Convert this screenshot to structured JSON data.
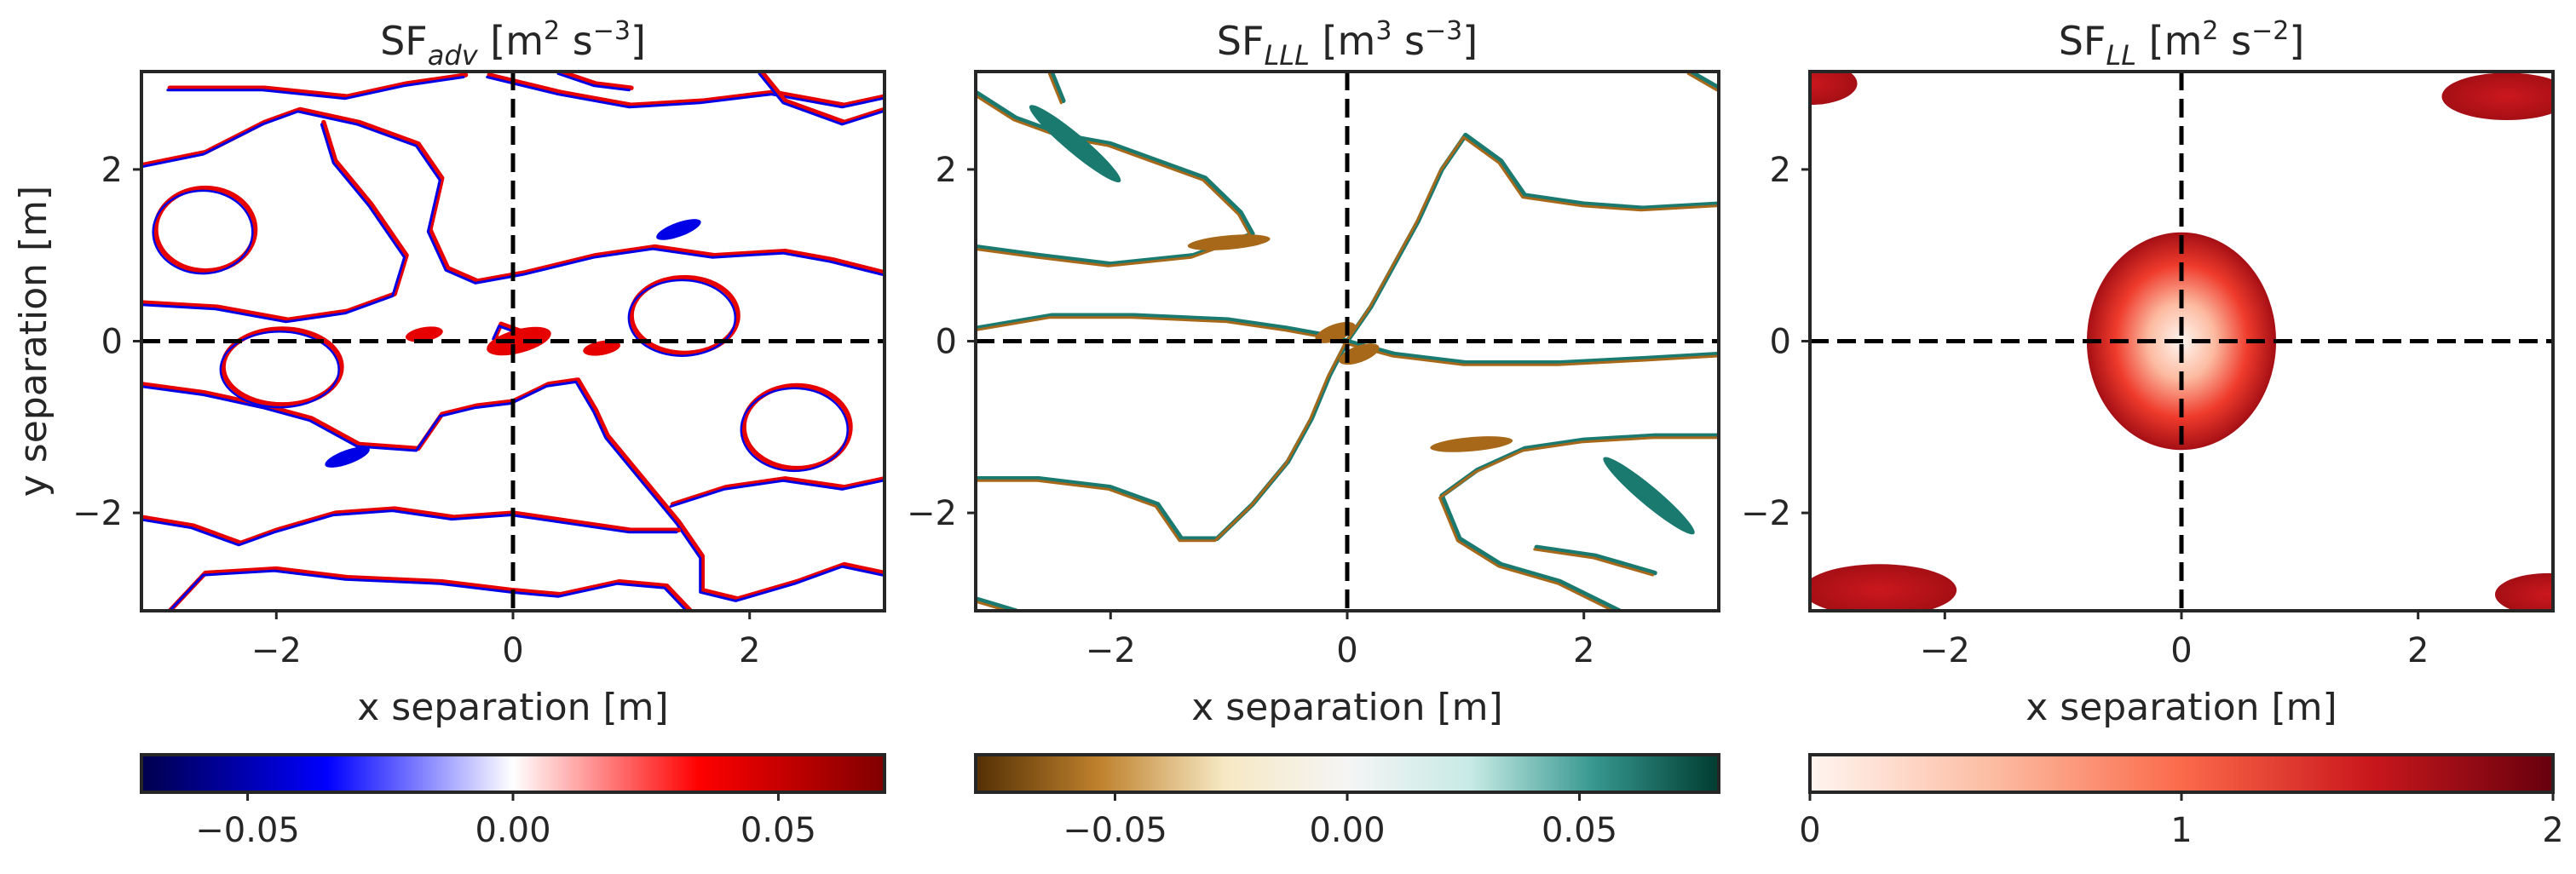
{
  "chart_data": [
    {
      "type": "heatmap",
      "title": {
        "base": "SF",
        "sub": "adv",
        "unit_pre": " [m",
        "unit_sup": "2",
        "unit_mid": " s",
        "unit_sup2": "−3",
        "unit_post": "]"
      },
      "xlabel": "x separation [m]",
      "ylabel": "y separation [m]",
      "xlim": [
        -3.14,
        3.14
      ],
      "ylim": [
        -3.14,
        3.14
      ],
      "xticks": [
        {
          "v": -2,
          "label": "−2"
        },
        {
          "v": 0,
          "label": "0"
        },
        {
          "v": 2,
          "label": "2"
        }
      ],
      "yticks": [
        {
          "v": 2,
          "label": "2"
        },
        {
          "v": 0,
          "label": "0"
        },
        {
          "v": -2,
          "label": "−2"
        }
      ],
      "show_yticks": true,
      "cross_lines": {
        "x": 0,
        "y": 0,
        "style": "dashed"
      },
      "colorbar": {
        "colormap": "seismic",
        "range": [
          -0.07,
          0.07
        ],
        "ticks": [
          {
            "v": -0.05,
            "label": "−0.05"
          },
          {
            "v": 0.0,
            "label": "0.00"
          },
          {
            "v": 0.05,
            "label": "0.05"
          }
        ],
        "stops": [
          "#00004c",
          "#0000ff",
          "#ffffff",
          "#ff0000",
          "#800000"
        ]
      },
      "colors": {
        "neg": "#0000e6",
        "pos": "#e60000"
      },
      "contours": [
        [
          [
            -3.14,
            2.05
          ],
          [
            -2.6,
            2.2
          ],
          [
            -2.1,
            2.55
          ],
          [
            -1.8,
            2.7
          ],
          [
            -1.3,
            2.55
          ],
          [
            -0.8,
            2.3
          ],
          [
            -0.6,
            1.9
          ],
          [
            -0.7,
            1.3
          ],
          [
            -0.55,
            0.85
          ],
          [
            -0.3,
            0.7
          ],
          [
            0.1,
            0.8
          ],
          [
            0.7,
            1.0
          ],
          [
            1.2,
            1.1
          ],
          [
            1.7,
            1.0
          ],
          [
            2.3,
            1.05
          ],
          [
            2.7,
            0.95
          ],
          [
            3.14,
            0.8
          ]
        ],
        [
          [
            -3.14,
            0.45
          ],
          [
            -2.5,
            0.4
          ],
          [
            -1.9,
            0.25
          ],
          [
            -1.4,
            0.35
          ],
          [
            -1.0,
            0.55
          ],
          [
            -0.9,
            1.0
          ],
          [
            -1.2,
            1.6
          ],
          [
            -1.5,
            2.1
          ],
          [
            -1.6,
            2.55
          ]
        ],
        [
          [
            -2.9,
            2.95
          ],
          [
            -2.1,
            2.95
          ],
          [
            -1.4,
            2.85
          ],
          [
            -0.9,
            3.0
          ],
          [
            -0.4,
            3.1
          ]
        ],
        [
          [
            -0.2,
            3.1
          ],
          [
            0.4,
            2.9
          ],
          [
            1.0,
            2.75
          ],
          [
            1.6,
            2.8
          ],
          [
            2.2,
            2.9
          ],
          [
            2.8,
            2.75
          ],
          [
            3.14,
            2.85
          ]
        ],
        [
          [
            0.4,
            3.14
          ],
          [
            0.7,
            3.0
          ],
          [
            1.0,
            2.95
          ]
        ],
        [
          [
            2.1,
            3.14
          ],
          [
            2.3,
            2.8
          ],
          [
            2.8,
            2.55
          ],
          [
            3.14,
            2.7
          ]
        ],
        [
          [
            -3.14,
            -0.5
          ],
          [
            -2.6,
            -0.6
          ],
          [
            -2.1,
            -0.75
          ],
          [
            -1.7,
            -0.9
          ],
          [
            -1.3,
            -1.2
          ],
          [
            -0.8,
            -1.25
          ],
          [
            -0.6,
            -0.85
          ],
          [
            -0.3,
            -0.75
          ],
          [
            0.0,
            -0.7
          ],
          [
            0.3,
            -0.5
          ],
          [
            0.55,
            -0.45
          ],
          [
            0.7,
            -0.8
          ],
          [
            0.8,
            -1.1
          ],
          [
            1.1,
            -1.6
          ],
          [
            1.4,
            -2.1
          ],
          [
            1.6,
            -2.5
          ],
          [
            1.6,
            -2.9
          ],
          [
            1.9,
            -3.0
          ],
          [
            2.4,
            -2.8
          ],
          [
            2.8,
            -2.6
          ],
          [
            3.14,
            -2.7
          ]
        ],
        [
          [
            -3.14,
            -2.05
          ],
          [
            -2.7,
            -2.15
          ],
          [
            -2.3,
            -2.35
          ],
          [
            -2.0,
            -2.2
          ],
          [
            -1.5,
            -2.0
          ],
          [
            -1.0,
            -1.95
          ],
          [
            -0.5,
            -2.05
          ],
          [
            0.0,
            -2.0
          ],
          [
            0.5,
            -2.1
          ],
          [
            1.0,
            -2.2
          ],
          [
            1.4,
            -2.2
          ]
        ],
        [
          [
            1.35,
            -1.9
          ],
          [
            1.8,
            -1.7
          ],
          [
            2.3,
            -1.6
          ],
          [
            2.8,
            -1.7
          ],
          [
            3.14,
            -1.6
          ]
        ],
        [
          [
            -2.9,
            -3.14
          ],
          [
            -2.6,
            -2.7
          ],
          [
            -2.0,
            -2.65
          ],
          [
            -1.4,
            -2.75
          ],
          [
            -0.6,
            -2.8
          ],
          [
            0.0,
            -2.9
          ],
          [
            0.4,
            -2.95
          ],
          [
            0.9,
            -2.8
          ],
          [
            1.3,
            -2.85
          ],
          [
            1.5,
            -3.14
          ]
        ],
        [
          [
            -0.1,
            0.2
          ],
          [
            0.2,
            0.05
          ],
          [
            0.05,
            -0.1
          ],
          [
            -0.15,
            0.05
          ],
          [
            -0.1,
            0.2
          ]
        ]
      ],
      "loops": [
        {
          "cx": -2.6,
          "cy": 1.3,
          "rx": 0.42,
          "ry": 0.35
        },
        {
          "cx": 1.45,
          "cy": 0.3,
          "rx": 0.45,
          "ry": 0.32
        },
        {
          "cx": -1.95,
          "cy": -0.3,
          "rx": 0.5,
          "ry": 0.32
        },
        {
          "cx": 2.4,
          "cy": -1.0,
          "rx": 0.45,
          "ry": 0.35
        }
      ],
      "blobs": [
        {
          "cx": 0.05,
          "cy": 0.0,
          "rx": 0.28,
          "ry": 0.1,
          "rot": -15,
          "sign": "pos"
        },
        {
          "cx": -0.75,
          "cy": 0.08,
          "rx": 0.16,
          "ry": 0.06,
          "rot": -10,
          "sign": "pos"
        },
        {
          "cx": 0.75,
          "cy": -0.08,
          "rx": 0.16,
          "ry": 0.06,
          "rot": -10,
          "sign": "pos"
        },
        {
          "cx": 1.4,
          "cy": 1.3,
          "rx": 0.2,
          "ry": 0.06,
          "rot": -20,
          "sign": "neg"
        },
        {
          "cx": -1.4,
          "cy": -1.35,
          "rx": 0.2,
          "ry": 0.06,
          "rot": -20,
          "sign": "neg"
        }
      ]
    },
    {
      "type": "heatmap",
      "title": {
        "base": "SF",
        "sub": "LLL",
        "unit_pre": " [m",
        "unit_sup": "3",
        "unit_mid": " s",
        "unit_sup2": "−3",
        "unit_post": "]"
      },
      "xlabel": "x separation [m]",
      "ylabel": "",
      "xlim": [
        -3.14,
        3.14
      ],
      "ylim": [
        -3.14,
        3.14
      ],
      "xticks": [
        {
          "v": -2,
          "label": "−2"
        },
        {
          "v": 0,
          "label": "0"
        },
        {
          "v": 2,
          "label": "2"
        }
      ],
      "yticks": [
        {
          "v": 2,
          "label": "2"
        },
        {
          "v": 0,
          "label": "0"
        },
        {
          "v": -2,
          "label": "−2"
        }
      ],
      "show_yticks": true,
      "cross_lines": {
        "x": 0,
        "y": 0,
        "style": "dashed"
      },
      "colorbar": {
        "colormap": "BrBG",
        "range": [
          -0.08,
          0.08
        ],
        "ticks": [
          {
            "v": -0.05,
            "label": "−0.05"
          },
          {
            "v": 0.0,
            "label": "0.00"
          },
          {
            "v": 0.05,
            "label": "0.05"
          }
        ],
        "stops": [
          "#543005",
          "#bf812d",
          "#f6e8c3",
          "#f5f5f5",
          "#c7eae5",
          "#35978f",
          "#003c30"
        ]
      },
      "colors": {
        "neg": "#a8681a",
        "pos": "#1b7a70"
      },
      "contours": [
        [
          [
            -3.14,
            2.9
          ],
          [
            -2.8,
            2.6
          ],
          [
            -2.4,
            2.4
          ],
          [
            -2.0,
            2.3
          ],
          [
            -1.6,
            2.1
          ],
          [
            -1.2,
            1.9
          ],
          [
            -0.9,
            1.5
          ],
          [
            -0.8,
            1.25
          ],
          [
            -1.3,
            1.0
          ],
          [
            -2.0,
            0.9
          ],
          [
            -2.6,
            1.0
          ],
          [
            -3.14,
            1.1
          ]
        ],
        [
          [
            -3.14,
            0.15
          ],
          [
            -2.5,
            0.3
          ],
          [
            -1.8,
            0.3
          ],
          [
            -1.0,
            0.25
          ],
          [
            -0.5,
            0.15
          ],
          [
            -0.1,
            0.05
          ],
          [
            0.0,
            0.0
          ]
        ],
        [
          [
            0.0,
            0.0
          ],
          [
            0.2,
            0.4
          ],
          [
            0.4,
            0.9
          ],
          [
            0.6,
            1.4
          ],
          [
            0.8,
            2.0
          ],
          [
            1.0,
            2.4
          ],
          [
            1.3,
            2.1
          ],
          [
            1.5,
            1.7
          ],
          [
            2.0,
            1.6
          ],
          [
            2.5,
            1.55
          ],
          [
            3.14,
            1.6
          ]
        ],
        [
          [
            0.0,
            0.0
          ],
          [
            -0.15,
            -0.4
          ],
          [
            -0.3,
            -0.9
          ],
          [
            -0.5,
            -1.4
          ],
          [
            -0.8,
            -1.9
          ],
          [
            -1.1,
            -2.3
          ],
          [
            -1.4,
            -2.3
          ],
          [
            -1.6,
            -1.9
          ],
          [
            -2.0,
            -1.7
          ],
          [
            -2.6,
            -1.6
          ],
          [
            -3.14,
            -1.6
          ]
        ],
        [
          [
            0.0,
            0.0
          ],
          [
            0.4,
            -0.15
          ],
          [
            1.0,
            -0.25
          ],
          [
            1.8,
            -0.25
          ],
          [
            2.5,
            -0.2
          ],
          [
            3.14,
            -0.15
          ]
        ],
        [
          [
            3.14,
            -1.1
          ],
          [
            2.6,
            -1.1
          ],
          [
            2.0,
            -1.15
          ],
          [
            1.5,
            -1.25
          ],
          [
            1.1,
            -1.5
          ],
          [
            0.8,
            -1.8
          ],
          [
            0.95,
            -2.3
          ],
          [
            1.3,
            -2.6
          ],
          [
            1.8,
            -2.8
          ],
          [
            2.3,
            -3.14
          ]
        ],
        [
          [
            -2.5,
            3.14
          ],
          [
            -2.4,
            2.8
          ]
        ],
        [
          [
            2.9,
            3.14
          ],
          [
            3.14,
            2.95
          ]
        ],
        [
          [
            -3.14,
            -3.0
          ],
          [
            -2.8,
            -3.14
          ]
        ],
        [
          [
            1.6,
            -2.4
          ],
          [
            2.1,
            -2.5
          ],
          [
            2.6,
            -2.7
          ]
        ]
      ],
      "loops": [],
      "blobs": [
        {
          "cx": -2.3,
          "cy": 2.3,
          "rx": 0.5,
          "ry": 0.08,
          "rot": 40,
          "sign": "pos"
        },
        {
          "cx": 2.55,
          "cy": -1.8,
          "rx": 0.5,
          "ry": 0.08,
          "rot": 40,
          "sign": "pos"
        },
        {
          "cx": -0.1,
          "cy": 0.1,
          "rx": 0.18,
          "ry": 0.07,
          "rot": -20,
          "sign": "neg"
        },
        {
          "cx": 0.1,
          "cy": -0.15,
          "rx": 0.18,
          "ry": 0.07,
          "rot": -20,
          "sign": "neg"
        },
        {
          "cx": -1.0,
          "cy": 1.15,
          "rx": 0.35,
          "ry": 0.06,
          "rot": -5,
          "sign": "neg"
        },
        {
          "cx": 1.05,
          "cy": -1.2,
          "rx": 0.35,
          "ry": 0.06,
          "rot": -5,
          "sign": "neg"
        }
      ]
    },
    {
      "type": "heatmap",
      "title": {
        "base": "SF",
        "sub": "LL",
        "unit_pre": " [m",
        "unit_sup": "2",
        "unit_mid": " s",
        "unit_sup2": "−2",
        "unit_post": "]"
      },
      "xlabel": "x separation [m]",
      "ylabel": "",
      "xlim": [
        -3.14,
        3.14
      ],
      "ylim": [
        -3.14,
        3.14
      ],
      "xticks": [
        {
          "v": -2,
          "label": "−2"
        },
        {
          "v": 0,
          "label": "0"
        },
        {
          "v": 2,
          "label": "2"
        }
      ],
      "yticks": [
        {
          "v": 2,
          "label": "2"
        },
        {
          "v": 0,
          "label": "0"
        },
        {
          "v": -2,
          "label": "−2"
        }
      ],
      "show_yticks": true,
      "cross_lines": {
        "x": 0,
        "y": 0,
        "style": "dashed"
      },
      "colorbar": {
        "colormap": "Reds",
        "range": [
          0,
          2
        ],
        "ticks": [
          {
            "v": 0,
            "label": "0"
          },
          {
            "v": 1,
            "label": "1"
          },
          {
            "v": 2,
            "label": "2"
          }
        ],
        "stops": [
          "#fff5f0",
          "#fcbba1",
          "#fb6a4a",
          "#cb181d",
          "#67000d"
        ]
      },
      "colors": {
        "neg": "#c2151b",
        "pos": "#c2151b"
      },
      "contours": [],
      "loops": [],
      "blobs": [],
      "regions": [
        {
          "cx": 0.0,
          "cy": 0.0,
          "rx": 0.8,
          "ry": 0.92,
          "kind": "center"
        },
        {
          "cx": -3.14,
          "cy": 3.0,
          "rx": 0.4,
          "ry": 0.18,
          "kind": "corner"
        },
        {
          "cx": 2.75,
          "cy": 2.85,
          "rx": 0.55,
          "ry": 0.2,
          "kind": "corner"
        },
        {
          "cx": -2.55,
          "cy": -2.9,
          "rx": 0.65,
          "ry": 0.22,
          "kind": "corner"
        },
        {
          "cx": 3.1,
          "cy": -2.95,
          "rx": 0.45,
          "ry": 0.18,
          "kind": "corner"
        }
      ]
    }
  ]
}
